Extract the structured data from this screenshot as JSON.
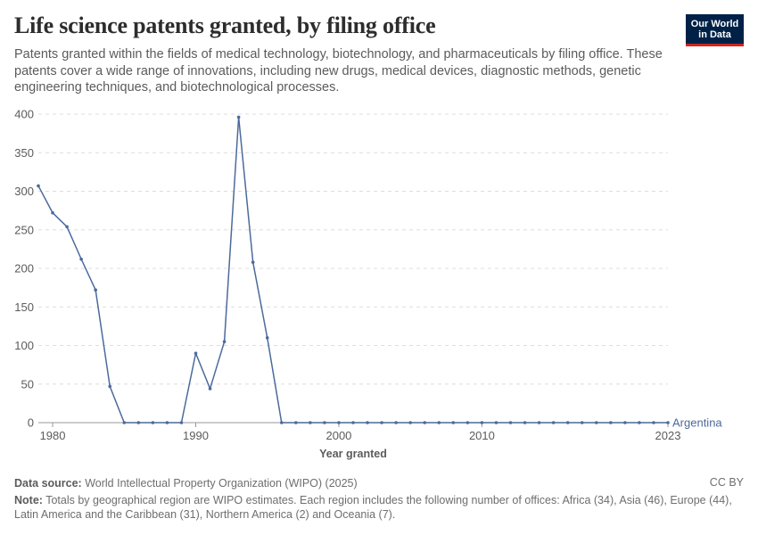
{
  "header": {
    "title": "Life science patents granted, by filing office",
    "subtitle": "Patents granted within the fields of medical technology, biotechnology, and pharmaceuticals by filing office. These patents cover a wide range of innovations, including new drugs, medical devices, diagnostic methods, genetic engineering techniques, and biotechnological processes.",
    "logo_line1": "Our World",
    "logo_line2": "in Data"
  },
  "footer": {
    "source_label": "Data source:",
    "source_text": "World Intellectual Property Organization (WIPO) (2025)",
    "license": "CC BY",
    "note_label": "Note:",
    "note_text": "Totals by geographical region are WIPO estimates. Each region includes the following number of offices: Africa (34), Asia (46), Europe (44), Latin America and the Caribbean (31), Northern America (2) and Oceania (7)."
  },
  "colors": {
    "series": "#4c6a9c",
    "grid": "#dddddd",
    "axis": "#999999",
    "text": "#5b5b5b"
  },
  "chart_data": {
    "type": "line",
    "xlabel": "Year granted",
    "ylabel": "",
    "xlim": [
      1979,
      2023
    ],
    "ylim": [
      0,
      400
    ],
    "yticks": [
      0,
      50,
      100,
      150,
      200,
      250,
      300,
      350,
      400
    ],
    "xticks": [
      1980,
      1990,
      2000,
      2010,
      2023
    ],
    "grid": true,
    "series": [
      {
        "name": "Argentina",
        "x": [
          1979,
          1980,
          1981,
          1982,
          1983,
          1984,
          1985,
          1986,
          1987,
          1988,
          1989,
          1990,
          1991,
          1992,
          1993,
          1994,
          1995,
          1996,
          1997,
          1998,
          1999,
          2000,
          2001,
          2002,
          2003,
          2004,
          2005,
          2006,
          2007,
          2008,
          2009,
          2010,
          2011,
          2012,
          2013,
          2014,
          2015,
          2016,
          2017,
          2018,
          2019,
          2020,
          2021,
          2022,
          2023
        ],
        "values": [
          307,
          272,
          254,
          212,
          172,
          47,
          0,
          0,
          0,
          0,
          0,
          90,
          44,
          105,
          396,
          208,
          110,
          0,
          0,
          0,
          0,
          0,
          0,
          0,
          0,
          0,
          0,
          0,
          0,
          0,
          0,
          0,
          0,
          0,
          0,
          0,
          0,
          0,
          0,
          0,
          0,
          0,
          0,
          0,
          0
        ]
      }
    ]
  }
}
